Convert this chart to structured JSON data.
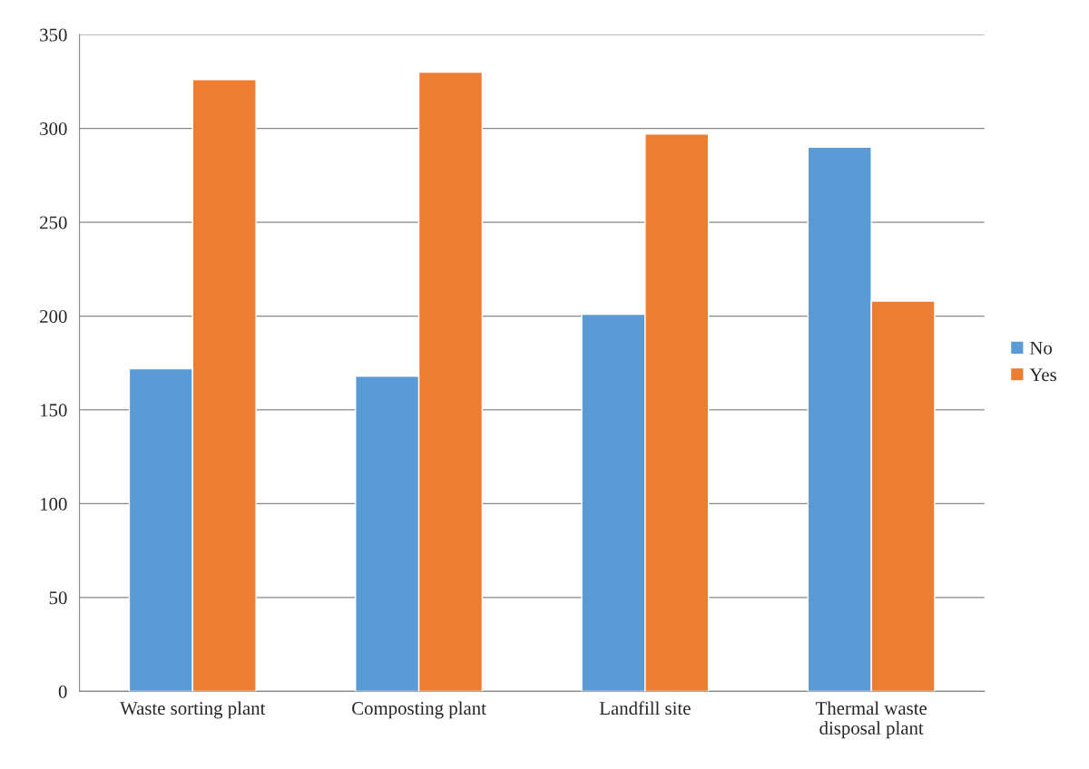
{
  "chart_data": {
    "type": "bar",
    "categories": [
      "Waste sorting plant",
      "Composting plant",
      "Landfill site",
      "Thermal waste disposal plant"
    ],
    "series": [
      {
        "name": "No",
        "color": "#5b9bd5",
        "values": [
          172,
          168,
          201,
          290
        ]
      },
      {
        "name": "Yes",
        "color": "#ed7d31",
        "values": [
          326,
          330,
          297,
          208
        ]
      }
    ],
    "ylim": [
      0,
      350
    ],
    "yticks": [
      0,
      50,
      100,
      150,
      200,
      250,
      300,
      350
    ],
    "grid": "y",
    "legend": "right"
  }
}
